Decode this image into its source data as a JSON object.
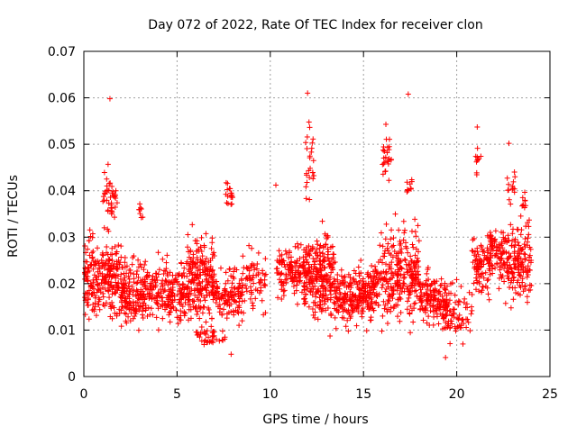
{
  "chart_data": {
    "type": "scatter",
    "title": "Day 072 of 2022, Rate Of TEC Index for receiver clon",
    "xlabel": "GPS time / hours",
    "ylabel": "ROTI / TECUs",
    "xlim": [
      0,
      25
    ],
    "ylim": [
      0,
      0.07
    ],
    "xticks": [
      0,
      5,
      10,
      15,
      20,
      25
    ],
    "xtick_labels": [
      "0",
      "5",
      "10",
      "15",
      "20",
      "25"
    ],
    "yticks": [
      0,
      0.01,
      0.02,
      0.03,
      0.04,
      0.05,
      0.06,
      0.07
    ],
    "ytick_labels": [
      "0",
      "0.01",
      "0.02",
      "0.03",
      "0.04",
      "0.05",
      "0.06",
      "0.07"
    ],
    "grid": true,
    "marker": "plus",
    "color": "#ff0000",
    "outliers": [
      {
        "x": 1.4,
        "y": 0.0598
      },
      {
        "x": 12.0,
        "y": 0.061
      },
      {
        "x": 17.4,
        "y": 0.0608
      },
      {
        "x": 21.1,
        "y": 0.0537
      },
      {
        "x": 22.8,
        "y": 0.0502
      },
      {
        "x": 7.9,
        "y": 0.0048
      },
      {
        "x": 19.4,
        "y": 0.0041
      },
      {
        "x": 10.3,
        "y": 0.0412
      },
      {
        "x": 1.3,
        "y": 0.0457
      },
      {
        "x": 16.2,
        "y": 0.0543
      }
    ],
    "segments": [
      {
        "x_start": 0.0,
        "x_end": 2.0,
        "y_low": 0.009,
        "y_high": 0.034,
        "count": 260
      },
      {
        "x_start": 1.0,
        "x_end": 1.8,
        "y_low": 0.03,
        "y_high": 0.046,
        "count": 40
      },
      {
        "x_start": 2.0,
        "x_end": 4.5,
        "y_low": 0.008,
        "y_high": 0.028,
        "count": 260
      },
      {
        "x_start": 2.9,
        "x_end": 3.2,
        "y_low": 0.032,
        "y_high": 0.038,
        "count": 8
      },
      {
        "x_start": 4.5,
        "x_end": 5.5,
        "y_low": 0.009,
        "y_high": 0.026,
        "count": 100
      },
      {
        "x_start": 5.5,
        "x_end": 7.0,
        "y_low": 0.008,
        "y_high": 0.034,
        "count": 220
      },
      {
        "x_start": 6.0,
        "x_end": 7.6,
        "y_low": 0.006,
        "y_high": 0.012,
        "count": 40
      },
      {
        "x_start": 7.0,
        "x_end": 8.5,
        "y_low": 0.01,
        "y_high": 0.025,
        "count": 120
      },
      {
        "x_start": 7.6,
        "x_end": 8.0,
        "y_low": 0.036,
        "y_high": 0.043,
        "count": 18
      },
      {
        "x_start": 8.5,
        "x_end": 9.8,
        "y_low": 0.012,
        "y_high": 0.03,
        "count": 70
      },
      {
        "x_start": 10.3,
        "x_end": 11.8,
        "y_low": 0.015,
        "y_high": 0.03,
        "count": 120
      },
      {
        "x_start": 11.8,
        "x_end": 13.5,
        "y_low": 0.007,
        "y_high": 0.035,
        "count": 260
      },
      {
        "x_start": 11.9,
        "x_end": 12.4,
        "y_low": 0.036,
        "y_high": 0.058,
        "count": 25
      },
      {
        "x_start": 13.5,
        "x_end": 15.8,
        "y_low": 0.009,
        "y_high": 0.026,
        "count": 260
      },
      {
        "x_start": 15.8,
        "x_end": 18.0,
        "y_low": 0.008,
        "y_high": 0.036,
        "count": 260
      },
      {
        "x_start": 16.0,
        "x_end": 16.5,
        "y_low": 0.04,
        "y_high": 0.054,
        "count": 25
      },
      {
        "x_start": 17.3,
        "x_end": 17.6,
        "y_low": 0.036,
        "y_high": 0.047,
        "count": 10
      },
      {
        "x_start": 18.0,
        "x_end": 19.5,
        "y_low": 0.009,
        "y_high": 0.025,
        "count": 140
      },
      {
        "x_start": 19.2,
        "x_end": 20.8,
        "y_low": 0.005,
        "y_high": 0.022,
        "count": 80
      },
      {
        "x_start": 20.8,
        "x_end": 21.8,
        "y_low": 0.012,
        "y_high": 0.035,
        "count": 90
      },
      {
        "x_start": 21.0,
        "x_end": 21.3,
        "y_low": 0.04,
        "y_high": 0.052,
        "count": 10
      },
      {
        "x_start": 21.8,
        "x_end": 22.6,
        "y_low": 0.018,
        "y_high": 0.036,
        "count": 80
      },
      {
        "x_start": 22.6,
        "x_end": 24.0,
        "y_low": 0.012,
        "y_high": 0.036,
        "count": 150
      },
      {
        "x_start": 22.7,
        "x_end": 23.2,
        "y_low": 0.036,
        "y_high": 0.046,
        "count": 14
      },
      {
        "x_start": 23.4,
        "x_end": 23.7,
        "y_low": 0.034,
        "y_high": 0.042,
        "count": 10
      }
    ]
  }
}
